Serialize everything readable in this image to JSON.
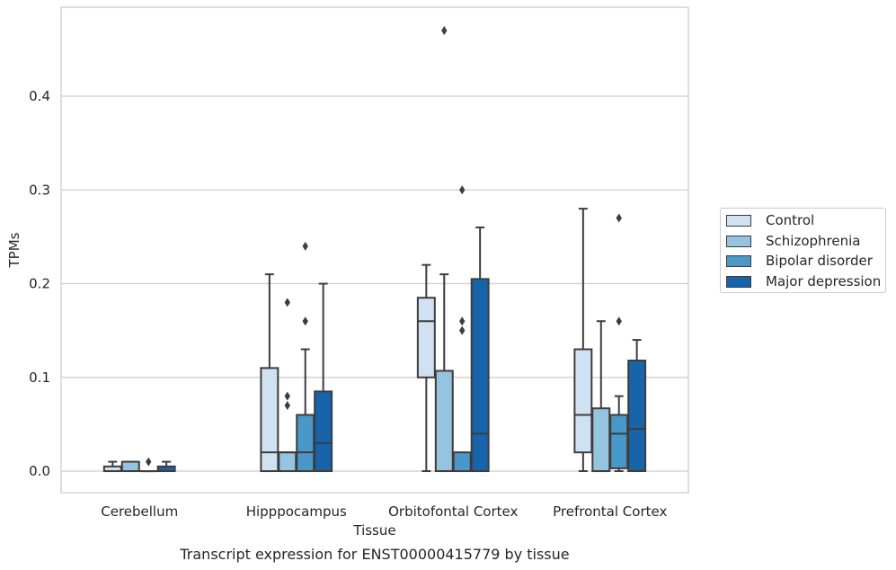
{
  "chart_data": {
    "type": "box",
    "caption": "Transcript expression for ENST00000415779 by tissue",
    "xlabel": "Tissue",
    "ylabel": "TPMs",
    "ylim": [
      -0.023,
      0.495
    ],
    "yticks": [
      "0.0",
      "0.1",
      "0.2",
      "0.3",
      "0.4"
    ],
    "grid": "horizontal",
    "legend_position": "right",
    "categories": [
      "Cerebellum",
      "Hipppocampus",
      "Orbitofontal Cortex",
      "Prefrontal Cortex"
    ],
    "series": [
      {
        "name": "Control",
        "color": "#d0e1f2",
        "boxes": [
          {
            "whislo": 0.0,
            "q1": 0.0,
            "med": 0.0,
            "q3": 0.005,
            "whishi": 0.01,
            "fliers": []
          },
          {
            "whislo": 0.0,
            "q1": 0.0,
            "med": 0.02,
            "q3": 0.11,
            "whishi": 0.21,
            "fliers": []
          },
          {
            "whislo": 0.0,
            "q1": 0.1,
            "med": 0.16,
            "q3": 0.185,
            "whishi": 0.22,
            "fliers": []
          },
          {
            "whislo": 0.0,
            "q1": 0.02,
            "med": 0.06,
            "q3": 0.13,
            "whishi": 0.28,
            "fliers": []
          }
        ]
      },
      {
        "name": "Schizophrenia",
        "color": "#94c4df",
        "boxes": [
          {
            "whislo": 0.0,
            "q1": 0.0,
            "med": 0.0,
            "q3": 0.01,
            "whishi": 0.01,
            "fliers": []
          },
          {
            "whislo": 0.0,
            "q1": 0.0,
            "med": 0.02,
            "q3": 0.02,
            "whishi": 0.02,
            "fliers": [
              0.07,
              0.08,
              0.18
            ]
          },
          {
            "whislo": 0.0,
            "q1": 0.0,
            "med": 0.0,
            "q3": 0.107,
            "whishi": 0.21,
            "fliers": [
              0.47
            ]
          },
          {
            "whislo": 0.0,
            "q1": 0.0,
            "med": 0.0,
            "q3": 0.067,
            "whishi": 0.16,
            "fliers": []
          }
        ]
      },
      {
        "name": "Bipolar disorder",
        "color": "#4a98c9",
        "boxes": [
          {
            "whislo": 0.0,
            "q1": 0.0,
            "med": 0.0,
            "q3": 0.0,
            "whishi": 0.0,
            "fliers": [
              0.01
            ]
          },
          {
            "whislo": 0.0,
            "q1": 0.0,
            "med": 0.02,
            "q3": 0.06,
            "whishi": 0.13,
            "fliers": [
              0.16,
              0.24
            ]
          },
          {
            "whislo": 0.0,
            "q1": 0.0,
            "med": 0.0,
            "q3": 0.02,
            "whishi": 0.02,
            "fliers": [
              0.15,
              0.16,
              0.3
            ]
          },
          {
            "whislo": 0.0,
            "q1": 0.003,
            "med": 0.04,
            "q3": 0.06,
            "whishi": 0.08,
            "fliers": [
              0.16,
              0.27
            ]
          }
        ]
      },
      {
        "name": "Major depression",
        "color": "#1764ab",
        "boxes": [
          {
            "whislo": 0.0,
            "q1": 0.0,
            "med": 0.0,
            "q3": 0.005,
            "whishi": 0.01,
            "fliers": []
          },
          {
            "whislo": 0.0,
            "q1": 0.0,
            "med": 0.03,
            "q3": 0.085,
            "whishi": 0.2,
            "fliers": []
          },
          {
            "whislo": 0.0,
            "q1": 0.0,
            "med": 0.04,
            "q3": 0.205,
            "whishi": 0.26,
            "fliers": []
          },
          {
            "whislo": 0.0,
            "q1": 0.0,
            "med": 0.045,
            "q3": 0.118,
            "whishi": 0.14,
            "fliers": []
          }
        ]
      }
    ]
  }
}
